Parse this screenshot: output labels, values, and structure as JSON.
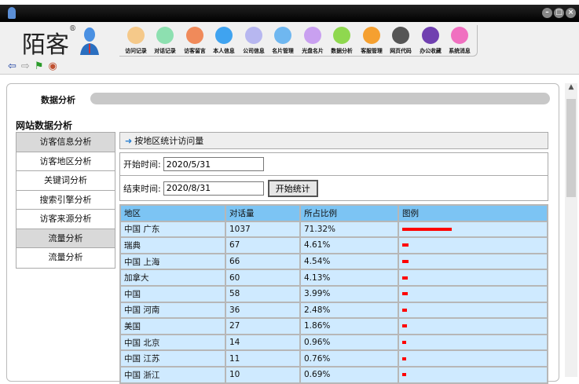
{
  "window": {
    "controls": [
      "minimize",
      "maximize",
      "close"
    ]
  },
  "logo": {
    "text": "陌客",
    "mark": "®"
  },
  "toolbar": [
    {
      "label": "访问记录",
      "color": "#f5c98a"
    },
    {
      "label": "对话记录",
      "color": "#8de0b0"
    },
    {
      "label": "访客留言",
      "color": "#f08a5a"
    },
    {
      "label": "本人信息",
      "color": "#3fa3f0"
    },
    {
      "label": "公司信息",
      "color": "#b7b7f0"
    },
    {
      "label": "名片管理",
      "color": "#6fb7f0"
    },
    {
      "label": "光盘名片",
      "color": "#c9a0f0"
    },
    {
      "label": "数据分析",
      "color": "#8fd84f"
    },
    {
      "label": "客服管理",
      "color": "#f5a030"
    },
    {
      "label": "网页代码",
      "color": "#555555"
    },
    {
      "label": "办公收藏",
      "color": "#7040b0"
    },
    {
      "label": "系统消息",
      "color": "#f070c0"
    }
  ],
  "nav": [
    "back-icon",
    "forward-icon",
    "flag-icon",
    "globe-icon"
  ],
  "tab": {
    "title": "数据分析"
  },
  "section_title": "网站数据分析",
  "menu": [
    {
      "label": "访客信息分析",
      "header": true
    },
    {
      "label": "访客地区分析"
    },
    {
      "label": "关键词分析"
    },
    {
      "label": "搜索引擎分析"
    },
    {
      "label": "访客来源分析"
    },
    {
      "label": "流量分析",
      "header": true
    },
    {
      "label": "流量分析"
    }
  ],
  "panel": {
    "title": "按地区统计访问量",
    "start_label": "开始时间:",
    "start_value": "2020/5/31",
    "end_label": "结束时间:",
    "end_value": "2020/8/31",
    "submit": "开始统计"
  },
  "table": {
    "headers": [
      "地区",
      "对话量",
      "所占比例",
      "图例"
    ],
    "bar_color": "#ff0000",
    "rows": [
      {
        "region": "中国 广东",
        "count": "1037",
        "pct": "71.32%",
        "p": 71.32
      },
      {
        "region": "瑞典",
        "count": "67",
        "pct": "4.61%",
        "p": 4.61
      },
      {
        "region": "中国 上海",
        "count": "66",
        "pct": "4.54%",
        "p": 4.54
      },
      {
        "region": "加拿大",
        "count": "60",
        "pct": "4.13%",
        "p": 4.13
      },
      {
        "region": "中国",
        "count": "58",
        "pct": "3.99%",
        "p": 3.99
      },
      {
        "region": "中国 河南",
        "count": "36",
        "pct": "2.48%",
        "p": 2.48
      },
      {
        "region": "美国",
        "count": "27",
        "pct": "1.86%",
        "p": 1.86
      },
      {
        "region": "中国 北京",
        "count": "14",
        "pct": "0.96%",
        "p": 0.96
      },
      {
        "region": "中国 江苏",
        "count": "11",
        "pct": "0.76%",
        "p": 0.76
      },
      {
        "region": "中国 浙江",
        "count": "10",
        "pct": "0.69%",
        "p": 0.69
      }
    ]
  }
}
